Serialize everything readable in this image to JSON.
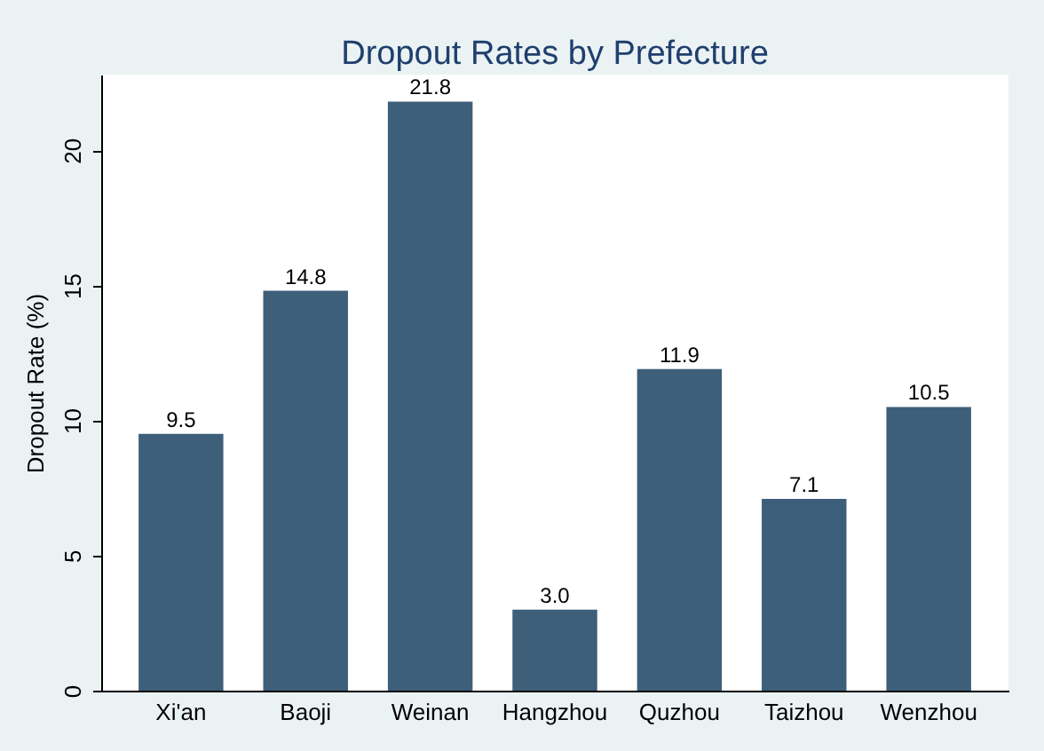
{
  "chart_data": {
    "type": "bar",
    "title": "Dropout Rates by Prefecture",
    "ylabel": "Dropout Rate (%)",
    "categories": [
      "Xi'an",
      "Baoji",
      "Weinan",
      "Hangzhou",
      "Quzhou",
      "Taizhou",
      "Wenzhou"
    ],
    "values": [
      9.5,
      14.8,
      21.8,
      3.0,
      11.9,
      7.1,
      10.5
    ],
    "value_labels": [
      "9.5",
      "14.8",
      "21.8",
      "3.0",
      "11.9",
      "7.1",
      "10.5"
    ],
    "color": "#3e5f7a",
    "ylim": [
      0,
      22.8
    ],
    "yticks": [
      0,
      5,
      10,
      15,
      20
    ],
    "grid": false
  }
}
